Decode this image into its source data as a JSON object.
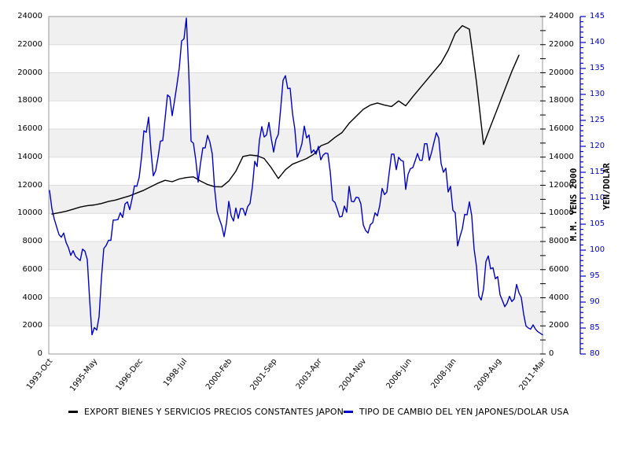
{
  "chart_data": {
    "type": "line",
    "title": "",
    "x_axis": {
      "start": "1993-Oct",
      "end": "2011-Mar",
      "tick_labels": [
        "1993-Oct",
        "1995-May",
        "1996-Dec",
        "1998-Jul",
        "2000-Feb",
        "2001-Sep",
        "2003-Apr",
        "2004-Nov",
        "2006-Jun",
        "2008-Jan",
        "2009-Aug",
        "2011-Mar"
      ]
    },
    "left_axis": {
      "label": "M.M. YENS 2000",
      "min": 0,
      "max": 24000,
      "tick_step": 2000,
      "minor_step": 1000,
      "color": "#000000"
    },
    "right_axis": {
      "label": "YEN/DOLAR",
      "min": 80,
      "max": 145,
      "tick_step": 5,
      "minor_step": 1,
      "color": "#0000cc"
    },
    "grid": {
      "band_fill": "#f0f0f0",
      "line_color": "#dcdcdc",
      "border_color": "#999999"
    },
    "legend_position": "bottom",
    "series": [
      {
        "name": "EXPORT BIENES Y SERVICIOS PRECIOS CONSTANTES JAPON",
        "color": "#000000",
        "axis": "left",
        "frequency": "quarterly",
        "start": "1993-Q4",
        "end": "2010-Q2",
        "values": [
          9950,
          10050,
          10150,
          10300,
          10450,
          10550,
          10600,
          10700,
          10850,
          10950,
          11100,
          11250,
          11450,
          11650,
          11900,
          12150,
          12350,
          12250,
          12450,
          12550,
          12600,
          12300,
          12050,
          11900,
          11880,
          12300,
          13000,
          14050,
          14150,
          14100,
          13900,
          13250,
          12480,
          13100,
          13500,
          13700,
          13900,
          14200,
          14800,
          15000,
          15400,
          15750,
          16400,
          16900,
          17400,
          17700,
          17850,
          17700,
          17600,
          18000,
          17650,
          18300,
          18900,
          19500,
          20100,
          20700,
          21600,
          22800,
          23350,
          23100,
          19350,
          14900,
          16200,
          17500,
          18800,
          20100,
          21250
        ]
      },
      {
        "name": "TIPO DE CAMBIO DEL YEN JAPONES/DOLAR USA",
        "color": "#0000cc",
        "axis": "right",
        "frequency": "monthly",
        "start": "1993-10",
        "end": "2011-03",
        "values": [
          111.5,
          108.0,
          106.0,
          104.5,
          103.0,
          102.5,
          103.3,
          101.5,
          100.5,
          99.0,
          99.9,
          98.8,
          98.4,
          98.0,
          100.2,
          99.8,
          98.2,
          90.5,
          83.7,
          85.1,
          84.6,
          87.2,
          94.6,
          100.3,
          100.9,
          101.9,
          101.9,
          105.8,
          105.8,
          105.9,
          107.2,
          106.3,
          108.9,
          109.3,
          107.8,
          109.9,
          112.4,
          112.3,
          114.0,
          117.9,
          123.0,
          122.7,
          125.6,
          119.2,
          114.3,
          115.3,
          117.9,
          121.0,
          121.1,
          125.4,
          129.9,
          129.5,
          125.9,
          128.8,
          131.8,
          135.1,
          140.3,
          140.7,
          144.7,
          134.6,
          121.0,
          120.6,
          117.4,
          113.1,
          116.7,
          119.7,
          119.7,
          122.1,
          120.8,
          118.5,
          111.8,
          107.5,
          106.0,
          104.7,
          102.6,
          105.2,
          109.4,
          106.6,
          105.6,
          108.1,
          106.1,
          108.0,
          108.0,
          106.7,
          108.4,
          109.0,
          112.2,
          117.1,
          116.1,
          121.2,
          123.8,
          121.8,
          122.2,
          124.6,
          121.5,
          118.9,
          121.3,
          122.3,
          127.3,
          132.7,
          133.6,
          131.1,
          131.2,
          126.4,
          123.3,
          117.9,
          119.0,
          120.5,
          123.9,
          121.6,
          122.2,
          118.7,
          119.3,
          118.5,
          120.0,
          117.4,
          118.3,
          118.7,
          118.6,
          115.1,
          109.6,
          109.2,
          107.9,
          106.4,
          106.5,
          108.5,
          107.3,
          112.3,
          109.4,
          109.3,
          110.2,
          110.1,
          108.9,
          104.9,
          103.8,
          103.3,
          104.9,
          105.3,
          107.2,
          106.6,
          108.6,
          111.9,
          110.7,
          111.2,
          114.9,
          118.5,
          118.5,
          115.5,
          117.9,
          117.3,
          117.1,
          111.7,
          114.6,
          115.7,
          115.9,
          117.2,
          118.6,
          117.3,
          117.3,
          120.5,
          120.5,
          117.3,
          118.9,
          120.8,
          122.6,
          121.6,
          116.7,
          115.0,
          115.8,
          111.2,
          112.3,
          107.7,
          107.2,
          100.8,
          102.6,
          104.1,
          106.9,
          106.8,
          109.3,
          106.6,
          100.2,
          96.9,
          91.2,
          90.4,
          92.5,
          97.8,
          98.9,
          96.4,
          96.6,
          94.5,
          94.9,
          91.4,
          90.3,
          89.1,
          89.8,
          91.1,
          90.1,
          90.6,
          93.4,
          91.8,
          90.9,
          87.7,
          85.4,
          85.0,
          84.8,
          85.6,
          84.8,
          84.3,
          84.0,
          83.7
        ]
      }
    ]
  },
  "legend": {
    "entries": [
      {
        "swatch_color": "#000000"
      },
      {
        "swatch_color": "#0000cc"
      }
    ]
  }
}
